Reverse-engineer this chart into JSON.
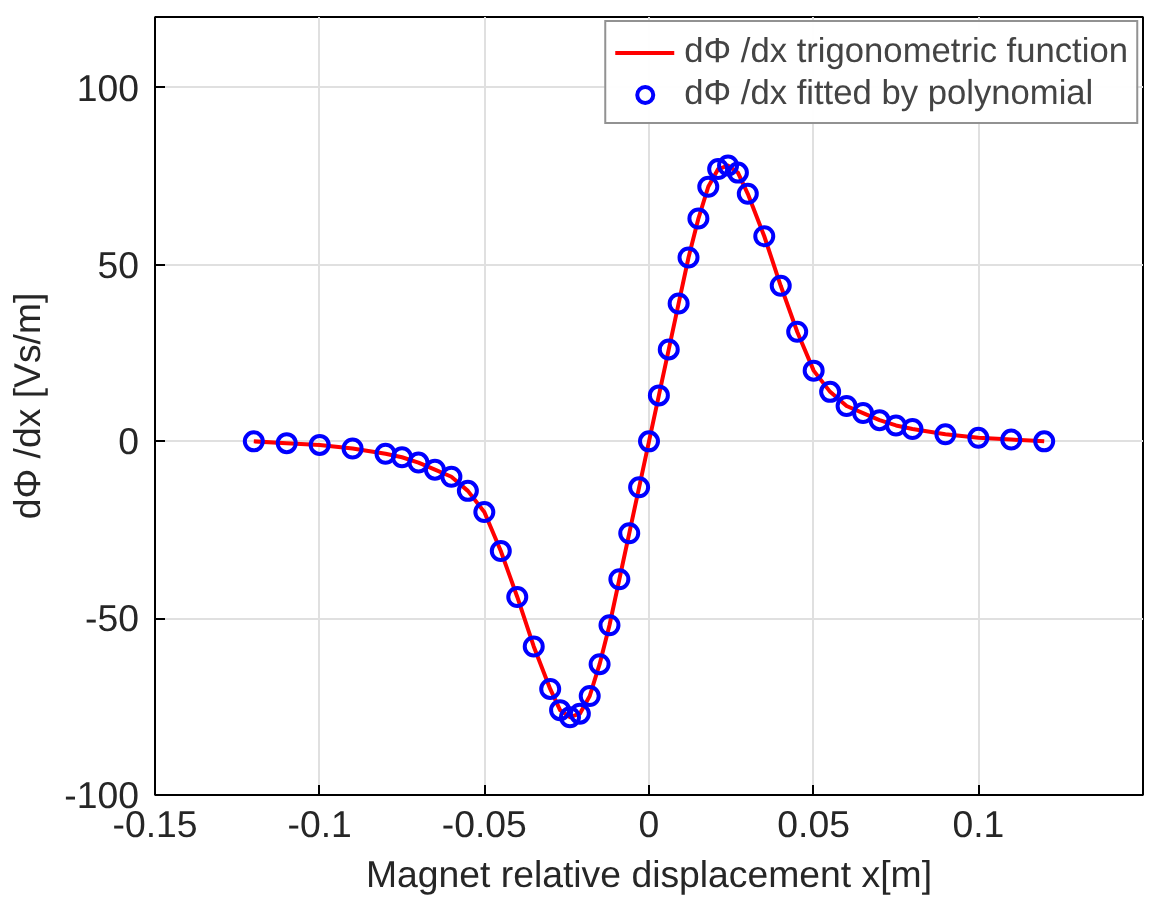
{
  "chart_data": {
    "type": "line",
    "xlabel": "Magnet relative displacement x[m]",
    "ylabel": "dΦ /dx [Vs/m]",
    "x": [
      -0.12,
      -0.11,
      -0.1,
      -0.09,
      -0.08,
      -0.075,
      -0.07,
      -0.065,
      -0.06,
      -0.055,
      -0.05,
      -0.045,
      -0.04,
      -0.035,
      -0.03,
      -0.027,
      -0.024,
      -0.021,
      -0.018,
      -0.015,
      -0.012,
      -0.009,
      -0.006,
      -0.003,
      0,
      0.003,
      0.006,
      0.009,
      0.012,
      0.015,
      0.018,
      0.021,
      0.024,
      0.027,
      0.03,
      0.035,
      0.04,
      0.045,
      0.05,
      0.055,
      0.06,
      0.065,
      0.07,
      0.075,
      0.08,
      0.09,
      0.1,
      0.11,
      0.12
    ],
    "series": [
      {
        "name": "dΦ /dx trigonometric function",
        "color": "#ff0000",
        "values": [
          0,
          -0.5,
          -1,
          -2,
          -3.5,
          -4.5,
          -6,
          -8,
          -10,
          -14,
          -20,
          -31,
          -44,
          -58,
          -70,
          -76,
          -78,
          -77,
          -72,
          -63,
          -52,
          -39,
          -26,
          -13,
          0,
          13,
          26,
          39,
          52,
          63,
          72,
          77,
          78,
          76,
          70,
          58,
          44,
          31,
          20,
          14,
          10,
          8,
          6,
          4.5,
          3.5,
          2,
          1,
          0.5,
          0
        ]
      },
      {
        "name": "dΦ /dx fitted by polynomial",
        "color": "#0000ff",
        "type": "scatter",
        "marker": "circle",
        "values": [
          0,
          -0.5,
          -1,
          -2,
          -3.5,
          -4.5,
          -6,
          -8,
          -10,
          -14,
          -20,
          -31,
          -44,
          -58,
          -70,
          -76,
          -78,
          -77,
          -72,
          -63,
          -52,
          -39,
          -26,
          -13,
          0,
          13,
          26,
          39,
          52,
          63,
          72,
          77,
          78,
          76,
          70,
          58,
          44,
          31,
          20,
          14,
          10,
          8,
          6,
          4.5,
          3.5,
          2,
          1,
          0.5,
          0
        ]
      }
    ],
    "xlim": [
      -0.15,
      0.15
    ],
    "ylim": [
      -100,
      120
    ],
    "xticks": [
      -0.15,
      -0.1,
      -0.05,
      0,
      0.05,
      0.1
    ],
    "yticks": [
      -100,
      -50,
      0,
      50,
      100
    ],
    "grid": true,
    "legend": "top right"
  }
}
